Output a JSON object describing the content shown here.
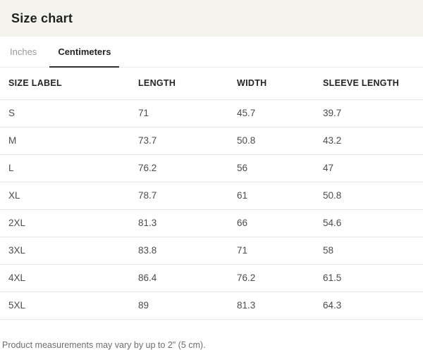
{
  "header": {
    "title": "Size chart"
  },
  "tabs": [
    {
      "label": "Inches",
      "active": false
    },
    {
      "label": "Centimeters",
      "active": true
    }
  ],
  "table": {
    "columns": [
      "SIZE LABEL",
      "LENGTH",
      "WIDTH",
      "SLEEVE LENGTH"
    ],
    "rows": [
      {
        "size": "S",
        "length": "71",
        "width": "45.7",
        "sleeve": "39.7"
      },
      {
        "size": "M",
        "length": "73.7",
        "width": "50.8",
        "sleeve": "43.2"
      },
      {
        "size": "L",
        "length": "76.2",
        "width": "56",
        "sleeve": "47"
      },
      {
        "size": "XL",
        "length": "78.7",
        "width": "61",
        "sleeve": "50.8"
      },
      {
        "size": "2XL",
        "length": "81.3",
        "width": "66",
        "sleeve": "54.6"
      },
      {
        "size": "3XL",
        "length": "83.8",
        "width": "71",
        "sleeve": "58"
      },
      {
        "size": "4XL",
        "length": "86.4",
        "width": "76.2",
        "sleeve": "61.5"
      },
      {
        "size": "5XL",
        "length": "89",
        "width": "81.3",
        "sleeve": "64.3"
      }
    ]
  },
  "footer": {
    "note": "Product measurements may vary by up to 2\" (5 cm)."
  },
  "colors": {
    "header_bg": "#f5f3ee",
    "active_tab_underline": "#2f3032",
    "divider": "#e8e8e8",
    "inactive_tab_text": "#9a9a9a"
  }
}
